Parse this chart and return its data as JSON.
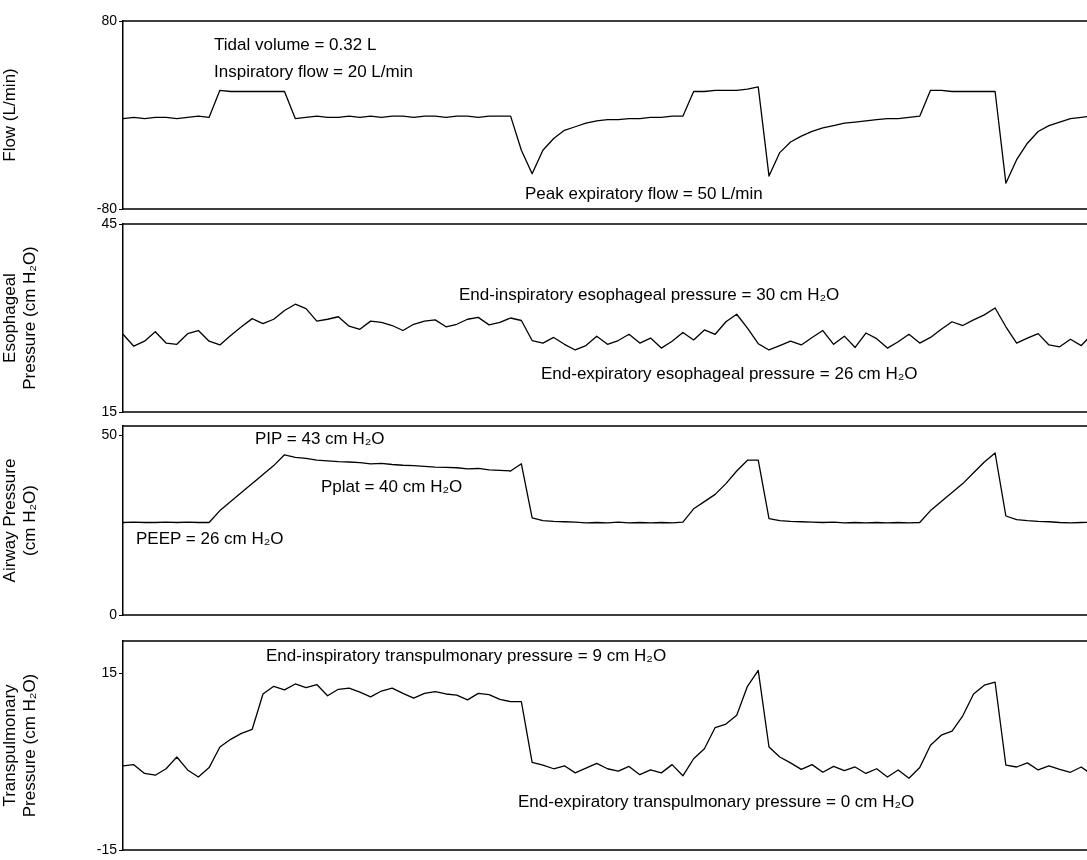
{
  "chart_data": [
    {
      "type": "line",
      "ylabel": "Flow (L/min)",
      "ylim": [
        -80,
        80
      ],
      "yticks": [
        -80,
        80
      ],
      "tick_labels": "y",
      "grid": false,
      "legend": false,
      "marker": "none",
      "categories": [
        null,
        null,
        null,
        null,
        null,
        null,
        null,
        null,
        null,
        null,
        null,
        null,
        null,
        null,
        null,
        null,
        null,
        null,
        null,
        null,
        null,
        null,
        null,
        null,
        null,
        null,
        null,
        null,
        null,
        null,
        null,
        null,
        null,
        null,
        null,
        null,
        null,
        null,
        null,
        null,
        null,
        null,
        null,
        null,
        null,
        null,
        null,
        null,
        null,
        null,
        null,
        null,
        null,
        null,
        null,
        null,
        null,
        null,
        null,
        null,
        null,
        null,
        null,
        null,
        null,
        null,
        null,
        null,
        null,
        null,
        null,
        null,
        null,
        null,
        null,
        null,
        null,
        null,
        null,
        null,
        null,
        null,
        null,
        null,
        null,
        null,
        null,
        null,
        null,
        null,
        null
      ],
      "series": [
        {
          "color": "#000000",
          "values": [
            -3,
            -2,
            -3,
            -2,
            -2,
            -3,
            -2,
            -1,
            -2,
            21,
            20,
            20,
            20,
            20,
            20,
            20,
            -3,
            -2,
            -1,
            -2,
            -2,
            -1,
            -2,
            -1,
            -2,
            -1,
            -1,
            -2,
            -1,
            -1,
            -2,
            -1,
            -1,
            -2,
            -1,
            -1,
            -1,
            -30,
            -50,
            -30,
            -20,
            -13,
            -10,
            -7,
            -5,
            -4,
            -4,
            -3,
            -3,
            -2,
            -2,
            -1,
            -1,
            20,
            20,
            21,
            21,
            21,
            22,
            24,
            -52,
            -32,
            -23,
            -18,
            -14,
            -11,
            -9,
            -7,
            -6,
            -5,
            -4,
            -3,
            -3,
            -2,
            -1,
            21,
            21,
            20,
            20,
            20,
            20,
            20,
            -58,
            -38,
            -24,
            -14,
            -9,
            -6,
            -3,
            -2,
            -1
          ]
        }
      ],
      "annotations": [
        "Tidal volume = 0.32 L",
        "Inspiratory flow = 20 L/min",
        "Peak expiratory flow = 50 L/min"
      ]
    },
    {
      "type": "line",
      "ylabel": "Esophageal Pressure (cm H₂O)",
      "ylim": [
        15,
        45
      ],
      "yticks": [
        15,
        45
      ],
      "tick_labels": "y",
      "grid": false,
      "legend": false,
      "marker": "none",
      "categories": [
        null,
        null,
        null,
        null,
        null,
        null,
        null,
        null,
        null,
        null,
        null,
        null,
        null,
        null,
        null,
        null,
        null,
        null,
        null,
        null,
        null,
        null,
        null,
        null,
        null,
        null,
        null,
        null,
        null,
        null,
        null,
        null,
        null,
        null,
        null,
        null,
        null,
        null,
        null,
        null,
        null,
        null,
        null,
        null,
        null,
        null,
        null,
        null,
        null,
        null,
        null,
        null,
        null,
        null,
        null,
        null,
        null,
        null,
        null,
        null,
        null,
        null,
        null,
        null,
        null,
        null,
        null,
        null,
        null,
        null,
        null,
        null,
        null,
        null,
        null,
        null,
        null,
        null,
        null,
        null,
        null,
        null,
        null,
        null,
        null,
        null,
        null,
        null,
        null,
        null,
        null
      ],
      "series": [
        {
          "color": "#000000",
          "values": [
            27.4,
            25.5,
            26.3,
            27.8,
            26.0,
            25.8,
            27.5,
            28.0,
            26.3,
            25.7,
            27.2,
            28.6,
            29.9,
            29.1,
            29.8,
            31.2,
            32.2,
            31.5,
            29.5,
            29.8,
            30.2,
            28.7,
            28.2,
            29.5,
            29.3,
            28.8,
            28.0,
            29.0,
            29.5,
            29.7,
            28.6,
            29.0,
            29.8,
            30.1,
            28.9,
            29.3,
            30.0,
            29.6,
            26.4,
            26.0,
            26.9,
            25.8,
            24.9,
            25.6,
            27.1,
            25.8,
            26.4,
            27.4,
            26.0,
            26.8,
            25.2,
            26.3,
            27.7,
            26.5,
            28.1,
            27.4,
            29.4,
            30.6,
            28.4,
            25.9,
            24.9,
            25.6,
            26.3,
            25.7,
            26.9,
            28.0,
            25.8,
            27.1,
            25.3,
            27.6,
            26.7,
            25.2,
            26.2,
            27.4,
            26.0,
            26.9,
            28.2,
            29.4,
            28.8,
            29.7,
            30.5,
            31.6,
            28.6,
            26.0,
            26.8,
            27.5,
            25.7,
            25.4,
            26.6,
            25.6,
            27.4
          ]
        }
      ],
      "annotations": [
        "End-inspiratory esophageal pressure = 30 cm H₂O",
        "End-expiratory esophageal pressure = 26 cm H₂O"
      ]
    },
    {
      "type": "line",
      "ylabel": "Airway Pressure (cm H₂O)",
      "ylim": [
        0,
        52.5
      ],
      "yticks": [
        0,
        50
      ],
      "tick_labels": "y",
      "grid": false,
      "legend": false,
      "marker": "none",
      "categories": [
        null,
        null,
        null,
        null,
        null,
        null,
        null,
        null,
        null,
        null,
        null,
        null,
        null,
        null,
        null,
        null,
        null,
        null,
        null,
        null,
        null,
        null,
        null,
        null,
        null,
        null,
        null,
        null,
        null,
        null,
        null,
        null,
        null,
        null,
        null,
        null,
        null,
        null,
        null,
        null,
        null,
        null,
        null,
        null,
        null,
        null,
        null,
        null,
        null,
        null,
        null,
        null,
        null,
        null,
        null,
        null,
        null,
        null,
        null,
        null,
        null,
        null,
        null,
        null,
        null,
        null,
        null,
        null,
        null,
        null,
        null,
        null,
        null,
        null,
        null,
        null,
        null,
        null,
        null,
        null,
        null,
        null,
        null,
        null,
        null,
        null,
        null,
        null,
        null,
        null,
        null
      ],
      "series": [
        {
          "color": "#000000",
          "values": [
            25.7,
            25.8,
            25.7,
            25.7,
            25.8,
            25.7,
            25.8,
            25.7,
            25.7,
            29.0,
            31.5,
            34.0,
            36.5,
            39.0,
            41.5,
            44.5,
            43.8,
            43.5,
            43.0,
            42.8,
            42.6,
            42.5,
            42.3,
            42.0,
            42.1,
            41.8,
            41.6,
            41.5,
            41.3,
            41.1,
            41.0,
            40.9,
            40.6,
            40.7,
            40.3,
            40.2,
            40.0,
            42.0,
            27.0,
            26.2,
            26.0,
            25.9,
            25.8,
            25.6,
            25.7,
            25.6,
            25.8,
            25.6,
            25.7,
            25.6,
            25.7,
            25.6,
            25.8,
            29.5,
            31.5,
            33.5,
            36.5,
            40.0,
            43.0,
            43.0,
            26.8,
            26.2,
            26.0,
            25.9,
            25.8,
            25.7,
            25.8,
            25.6,
            25.7,
            25.6,
            25.7,
            25.6,
            25.7,
            25.6,
            25.7,
            29.0,
            31.5,
            34.0,
            36.5,
            39.5,
            42.5,
            45.0,
            27.5,
            26.5,
            26.2,
            26.0,
            25.9,
            25.7,
            25.6,
            25.7,
            25.8
          ]
        }
      ],
      "annotations": [
        "PIP = 43 cm H₂O",
        "Pplat = 40 cm H₂O",
        "PEEP = 26 cm H₂O"
      ]
    },
    {
      "type": "line",
      "ylabel": "Transpulmonary Pressure (cm H₂O)",
      "ylim": [
        -15,
        20.5
      ],
      "yticks": [
        -15,
        15
      ],
      "tick_labels": "y",
      "grid": false,
      "legend": false,
      "marker": "none",
      "categories": [
        null,
        null,
        null,
        null,
        null,
        null,
        null,
        null,
        null,
        null,
        null,
        null,
        null,
        null,
        null,
        null,
        null,
        null,
        null,
        null,
        null,
        null,
        null,
        null,
        null,
        null,
        null,
        null,
        null,
        null,
        null,
        null,
        null,
        null,
        null,
        null,
        null,
        null,
        null,
        null,
        null,
        null,
        null,
        null,
        null,
        null,
        null,
        null,
        null,
        null,
        null,
        null,
        null,
        null,
        null,
        null,
        null,
        null,
        null,
        null,
        null,
        null,
        null,
        null,
        null,
        null,
        null,
        null,
        null,
        null,
        null,
        null,
        null,
        null,
        null,
        null,
        null,
        null,
        null,
        null,
        null,
        null,
        null,
        null,
        null,
        null,
        null,
        null,
        null,
        null,
        null
      ],
      "series": [
        {
          "color": "#000000",
          "values": [
            -0.7,
            -0.5,
            -2.0,
            -2.3,
            -1.2,
            0.8,
            -1.4,
            -2.6,
            -1.0,
            2.5,
            3.8,
            4.8,
            5.5,
            11.5,
            12.8,
            12.2,
            13.2,
            12.6,
            13.1,
            11.2,
            12.3,
            12.5,
            11.8,
            11.0,
            12.0,
            12.5,
            11.6,
            10.8,
            11.6,
            11.9,
            11.5,
            11.3,
            10.5,
            11.6,
            11.4,
            10.6,
            10.2,
            10.2,
            -0.1,
            -0.6,
            -1.2,
            -0.7,
            -1.9,
            -1.1,
            -0.3,
            -1.2,
            -1.6,
            -0.8,
            -2.2,
            -1.4,
            -1.9,
            -0.5,
            -2.4,
            0.5,
            2.2,
            5.8,
            6.4,
            7.9,
            12.8,
            15.5,
            2.5,
            0.8,
            -0.2,
            -1.3,
            -0.5,
            -1.8,
            -0.8,
            -1.5,
            -0.9,
            -2.0,
            -1.2,
            -2.6,
            -1.4,
            -2.8,
            -1.0,
            2.8,
            4.5,
            5.2,
            7.8,
            11.5,
            13.0,
            13.5,
            -0.6,
            -0.9,
            -0.2,
            -1.4,
            -0.7,
            -1.3,
            -1.8,
            -0.9,
            -2.2
          ]
        }
      ],
      "annotations": [
        "End-inspiratory transpulmonary pressure = 9 cm H₂O",
        "End-expiratory transpulmonary pressure = 0 cm H₂O"
      ]
    }
  ]
}
